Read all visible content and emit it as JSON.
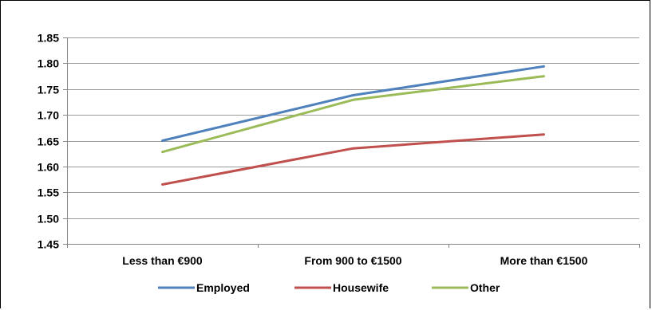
{
  "chart_data": {
    "type": "line",
    "categories": [
      "Less than €900",
      "From 900 to €1500",
      "More than €1500"
    ],
    "series": [
      {
        "name": "Employed",
        "values": [
          1.65,
          1.738,
          1.794
        ],
        "color": "#4F81BD"
      },
      {
        "name": "Housewife",
        "values": [
          1.565,
          1.635,
          1.662
        ],
        "color": "#C0504D"
      },
      {
        "name": "Other",
        "values": [
          1.628,
          1.729,
          1.775
        ],
        "color": "#9BBB59"
      }
    ],
    "yticks": [
      "1.45",
      "1.50",
      "1.55",
      "1.60",
      "1.65",
      "1.70",
      "1.75",
      "1.80",
      "1.85"
    ],
    "ylim": [
      1.45,
      1.85
    ],
    "grid": true,
    "legend_position": "bottom"
  }
}
